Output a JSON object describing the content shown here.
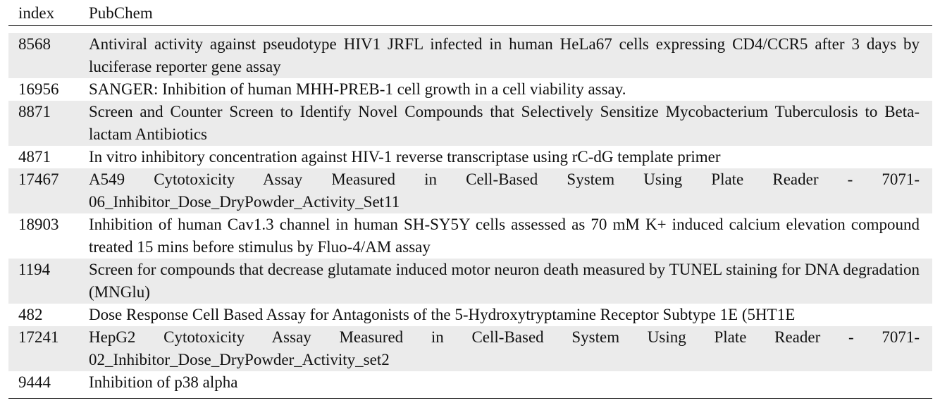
{
  "table": {
    "headers": {
      "index": "index",
      "pubchem": "PubChem"
    },
    "rows": [
      {
        "index": "8568",
        "text": "Antiviral activity against pseudotype HIV1 JRFL infected in human HeLa67 cells expressing CD4/CCR5 after 3 days by luciferase reporter gene assay"
      },
      {
        "index": "16956",
        "text": "SANGER: Inhibition of human MHH-PREB-1 cell growth in a cell viability assay."
      },
      {
        "index": "8871",
        "text": "Screen and Counter Screen to Identify Novel Compounds that Selectively Sensitize Mycobacterium Tuberculo­sis to Beta-lactam Antibiotics"
      },
      {
        "index": "4871",
        "text": "In vitro inhibitory concentration against HIV-1 reverse transcriptase using rC-dG template primer"
      },
      {
        "index": "17467",
        "text": "A549 Cytotoxicity Assay Measured in Cell-Based System Using Plate Reader - 7071-06_Inhibitor_Dose_DryPowder_Activity_Set11"
      },
      {
        "index": "18903",
        "text": "Inhibition of human Cav1.3 channel in human SH-SY5Y cells assessed as 70 mM K+ induced calcium elevation compound treated 15 mins before stimulus by Fluo-4/AM assay"
      },
      {
        "index": "1194",
        "text": "Screen for compounds that decrease glutamate induced motor neuron death measured by TUNEL staining for DNA degradation (MNGlu)"
      },
      {
        "index": "482",
        "text": "Dose Response Cell Based Assay for Antagonists of the 5-Hydroxytryptamine Receptor Subtype 1E (5HT1E"
      },
      {
        "index": "17241",
        "text": "HepG2 Cytotoxicity Assay Measured in Cell-Based System Using Plate Reader - 7071-02_Inhibitor_Dose_DryPowder_Activity_set2"
      },
      {
        "index": "9444",
        "text": "Inhibition of p38 alpha"
      }
    ]
  }
}
